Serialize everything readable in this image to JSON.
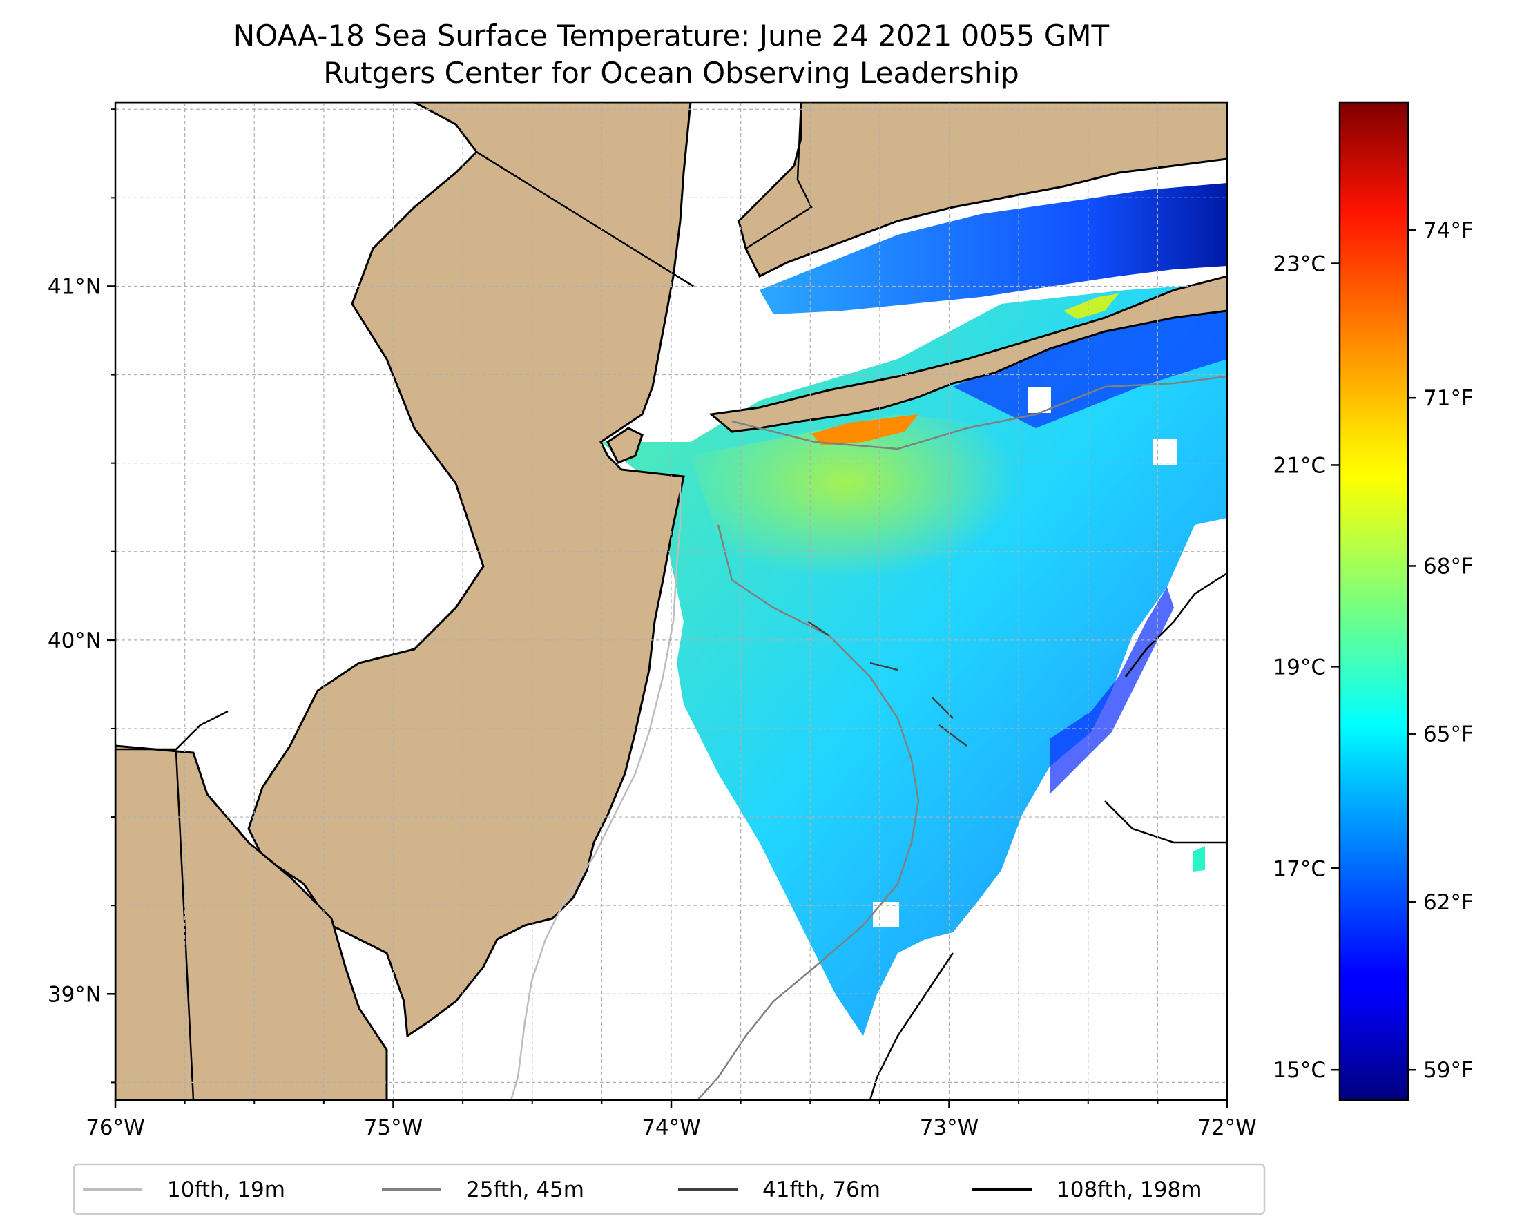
{
  "title": {
    "line1": "NOAA-18 Sea Surface Temperature: June 24 2021 0055 GMT",
    "line2": "Rutgers Center for Ocean Observing Leadership"
  },
  "colors": {
    "land": "#d2b48c",
    "ocean_nodata": "#ffffff",
    "coastline": "#000000",
    "gridline": "#b0b0b0"
  },
  "map": {
    "lon_range": [
      -76,
      -72
    ],
    "lat_range": [
      38.7,
      41.52
    ],
    "lon_ticks": [
      {
        "value": -76,
        "label": "76°W"
      },
      {
        "value": -75,
        "label": "75°W"
      },
      {
        "value": -74,
        "label": "74°W"
      },
      {
        "value": -73,
        "label": "73°W"
      },
      {
        "value": -72,
        "label": "72°W"
      }
    ],
    "lat_ticks": [
      {
        "value": 41,
        "label": "41°N"
      },
      {
        "value": 40,
        "label": "40°N"
      },
      {
        "value": 39,
        "label": "39°N"
      }
    ],
    "minor_lon_step": 0.25,
    "minor_lat_step": 0.25,
    "grid": true
  },
  "colorbar": {
    "colormap": "jet",
    "range_c": [
      14.7,
      24.6
    ],
    "celsius_ticks": [
      {
        "value": 15,
        "label": "15°C"
      },
      {
        "value": 17,
        "label": "17°C"
      },
      {
        "value": 19,
        "label": "19°C"
      },
      {
        "value": 21,
        "label": "21°C"
      },
      {
        "value": 23,
        "label": "23°C"
      }
    ],
    "fahrenheit_ticks": [
      {
        "value": 59,
        "label": "59°F"
      },
      {
        "value": 62,
        "label": "62°F"
      },
      {
        "value": 65,
        "label": "65°F"
      },
      {
        "value": 68,
        "label": "68°F"
      },
      {
        "value": 71,
        "label": "71°F"
      },
      {
        "value": 74,
        "label": "74°F"
      }
    ]
  },
  "legend": {
    "position": "bottom-center",
    "entries": [
      {
        "label": "10fth, 19m",
        "color": "#bdbdbd"
      },
      {
        "label": "25fth, 45m",
        "color": "#808080"
      },
      {
        "label": "41fth, 76m",
        "color": "#404040"
      },
      {
        "label": "108fth, 198m",
        "color": "#000000"
      }
    ]
  }
}
